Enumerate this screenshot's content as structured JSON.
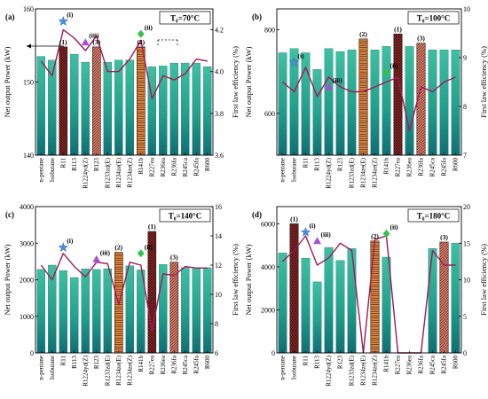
{
  "figure": {
    "y_left_label": "Net output Power (kW)",
    "y_right_label": "First law efficiency (%)"
  },
  "chart_data": [
    {
      "type": "bar",
      "panel": "(a)",
      "temperature": "T₀=70°C",
      "categories": [
        "n-pentane",
        "Isobutane",
        "R11",
        "R113",
        "R1224yd(Z)",
        "R123",
        "R1233zd(E)",
        "R1234ze(E)",
        "R1234ze(Z)",
        "R141b",
        "R227ea",
        "R236ea",
        "R236fa",
        "R245ca",
        "R245fa",
        "R600"
      ],
      "ylim": [
        140,
        160
      ],
      "yticks": [
        140,
        150,
        160
      ],
      "y2lim": [
        3.6,
        4.3
      ],
      "y2ticks": [
        3.6,
        3.8,
        4.0,
        4.2
      ],
      "series": [
        {
          "name": "Net output Power",
          "values": [
            153.5,
            153.0,
            154.8,
            153.8,
            152.7,
            154.8,
            152.7,
            153.0,
            153.0,
            154.8,
            152.1,
            152.2,
            152.6,
            152.6,
            152.6,
            152.1
          ]
        },
        {
          "name": "First law efficiency",
          "axis": "right",
          "values": [
            4.05,
            3.98,
            4.2,
            4.16,
            4.1,
            4.17,
            4.0,
            4.0,
            4.06,
            4.15,
            3.87,
            3.98,
            3.96,
            3.99,
            4.06,
            4.05
          ]
        }
      ],
      "highlights": [
        {
          "category": "R11",
          "label": "(1)",
          "style": "crosshatch",
          "color": "#cc1f1f"
        },
        {
          "category": "R123",
          "label": "(3)",
          "style": "diagonal",
          "color": "#e8806a"
        },
        {
          "category": "R141b",
          "label": "(2)",
          "style": "horizontal",
          "color": "#ee8a3c"
        }
      ],
      "markers": [
        {
          "category": "R11",
          "label": "(i)",
          "shape": "star",
          "color": "#4a90e2",
          "value": 4.24
        },
        {
          "category": "R1224yd(Z)",
          "label": "(iii)",
          "shape": "triangle",
          "color": "#a94fd6",
          "value": 4.14
        },
        {
          "category": "R141b",
          "label": "(ii)",
          "shape": "diamond",
          "color": "#33c24a",
          "value": 4.18
        }
      ]
    },
    {
      "type": "bar",
      "panel": "(b)",
      "temperature": "T₀=100°C",
      "categories": [
        "n-pentane",
        "Isobutane",
        "R11",
        "R113",
        "R1224yd(Z)",
        "R123",
        "R1233zd(E)",
        "R1234ze(E)",
        "R1234ze(Z)",
        "R141b",
        "R227ea",
        "R236ea",
        "R236fa",
        "R245ca",
        "R245fa",
        "R600"
      ],
      "ylim": [
        500,
        850
      ],
      "yticks": [
        600,
        800
      ],
      "y2lim": [
        7,
        10
      ],
      "y2ticks": [
        7,
        8,
        9,
        10
      ],
      "series": [
        {
          "name": "Net output Power",
          "values": [
            745,
            755,
            745,
            705,
            755,
            748,
            752,
            778,
            752,
            760,
            790,
            760,
            768,
            752,
            752,
            752
          ]
        },
        {
          "name": "First law efficiency",
          "axis": "right",
          "values": [
            8.5,
            8.3,
            8.8,
            8.2,
            8.6,
            8.4,
            8.3,
            8.3,
            8.4,
            8.5,
            8.6,
            7.5,
            8.4,
            8.3,
            8.5,
            8.6
          ]
        }
      ],
      "highlights": [
        {
          "category": "R1234ze(E)",
          "label": "(2)",
          "style": "horizontal",
          "color": "#ee8a3c"
        },
        {
          "category": "R227ea",
          "label": "(1)",
          "style": "crosshatch",
          "color": "#cc1f1f"
        },
        {
          "category": "R236fa",
          "label": "(3)",
          "style": "diagonal",
          "color": "#e8806a"
        }
      ],
      "markers": [
        {
          "category": "Isobutane",
          "label": "(i)",
          "shape": "star",
          "color": "#4a90e2",
          "value": 8.9
        },
        {
          "category": "R1224yd(Z)",
          "label": "(iii)",
          "shape": "triangle",
          "color": "#a94fd6",
          "value": 8.4
        },
        {
          "category": "R141b",
          "label": "(ii)",
          "shape": "diamond",
          "color": "#33c24a",
          "value": 8.7
        }
      ]
    },
    {
      "type": "bar",
      "panel": "(c)",
      "temperature": "T₀=140°C",
      "categories": [
        "n-pentane",
        "Isobutane",
        "R11",
        "R113",
        "R1224yd(Z)",
        "R123",
        "R1233zd(E)",
        "R1234ze(E)",
        "R1234ze(Z)",
        "R141b",
        "R227ea",
        "R236ea",
        "R236fa",
        "R245ca",
        "R245fa",
        "R600"
      ],
      "ylim": [
        0,
        4000
      ],
      "yticks": [
        0,
        1000,
        2000,
        3000,
        4000
      ],
      "y2lim": [
        6,
        16
      ],
      "y2ticks": [
        6,
        8,
        10,
        12,
        14,
        16
      ],
      "series": [
        {
          "name": "Net output Power",
          "values": [
            2280,
            2400,
            2250,
            2060,
            2300,
            2280,
            2300,
            2750,
            2380,
            2270,
            3320,
            2420,
            2480,
            2330,
            2330,
            2330
          ]
        },
        {
          "name": "First law efficiency",
          "axis": "right",
          "values": [
            12.0,
            11.0,
            12.8,
            11.9,
            11.2,
            12.2,
            12.1,
            9.3,
            12.2,
            12.0,
            7.5,
            11.4,
            11.3,
            11.9,
            11.8,
            11.8
          ]
        }
      ],
      "highlights": [
        {
          "category": "R1234ze(E)",
          "label": "(2)",
          "style": "horizontal",
          "color": "#ee8a3c"
        },
        {
          "category": "R227ea",
          "label": "(1)",
          "style": "crosshatch",
          "color": "#cc1f1f"
        },
        {
          "category": "R236fa",
          "label": "(3)",
          "style": "diagonal",
          "color": "#e8806a"
        }
      ],
      "markers": [
        {
          "category": "R11",
          "label": "(i)",
          "shape": "star",
          "color": "#4a90e2",
          "value": 13.2
        },
        {
          "category": "R123",
          "label": "(iii)",
          "shape": "triangle",
          "color": "#a94fd6",
          "value": 12.4
        },
        {
          "category": "R141b",
          "label": "(ii)",
          "shape": "diamond",
          "color": "#33c24a",
          "value": 12.8
        }
      ]
    },
    {
      "type": "bar",
      "panel": "(d)",
      "temperature": "T₀=180°C",
      "categories": [
        "n-pentane",
        "Isobutane",
        "R11",
        "R113",
        "R1224yd(Z)",
        "R123",
        "R1233zd(E)",
        "R1234ze(E)",
        "R1234ze(Z)",
        "R141b",
        "R227ea",
        "R236ea",
        "R236fa",
        "R245ca",
        "R245fa",
        "R600"
      ],
      "ylim": [
        0,
        6800
      ],
      "yticks": [
        0,
        2000,
        4000,
        6000
      ],
      "y2lim": [
        0,
        20
      ],
      "y2ticks": [
        0,
        5,
        10,
        15,
        20
      ],
      "series": [
        {
          "name": "Net output Power",
          "values": [
            4650,
            6000,
            4400,
            3300,
            4900,
            4300,
            4850,
            0,
            5200,
            4450,
            0,
            0,
            0,
            4850,
            5150,
            5100
          ]
        },
        {
          "name": "First law efficiency",
          "axis": "right",
          "values": [
            12.5,
            14.0,
            16.0,
            12.0,
            13.0,
            15.0,
            14.0,
            0,
            15.5,
            16.0,
            0,
            0,
            0,
            14.0,
            12.0,
            12.0
          ]
        }
      ],
      "highlights": [
        {
          "category": "Isobutane",
          "label": "(1)",
          "style": "crosshatch",
          "color": "#cc1f1f"
        },
        {
          "category": "R1234ze(Z)",
          "label": "(2)",
          "style": "horizontal",
          "color": "#ee8a3c"
        },
        {
          "category": "R245fa",
          "label": "(3)",
          "style": "diagonal",
          "color": "#e8806a"
        }
      ],
      "markers": [
        {
          "category": "R11",
          "label": "(i)",
          "shape": "star",
          "color": "#4a90e2",
          "value": 16.5
        },
        {
          "category": "R113",
          "label": "(iii)",
          "shape": "triangle",
          "color": "#a94fd6",
          "value": 15.3
        },
        {
          "category": "R141b",
          "label": "(ii)",
          "shape": "diamond",
          "color": "#33c24a",
          "value": 16.3
        }
      ]
    }
  ]
}
